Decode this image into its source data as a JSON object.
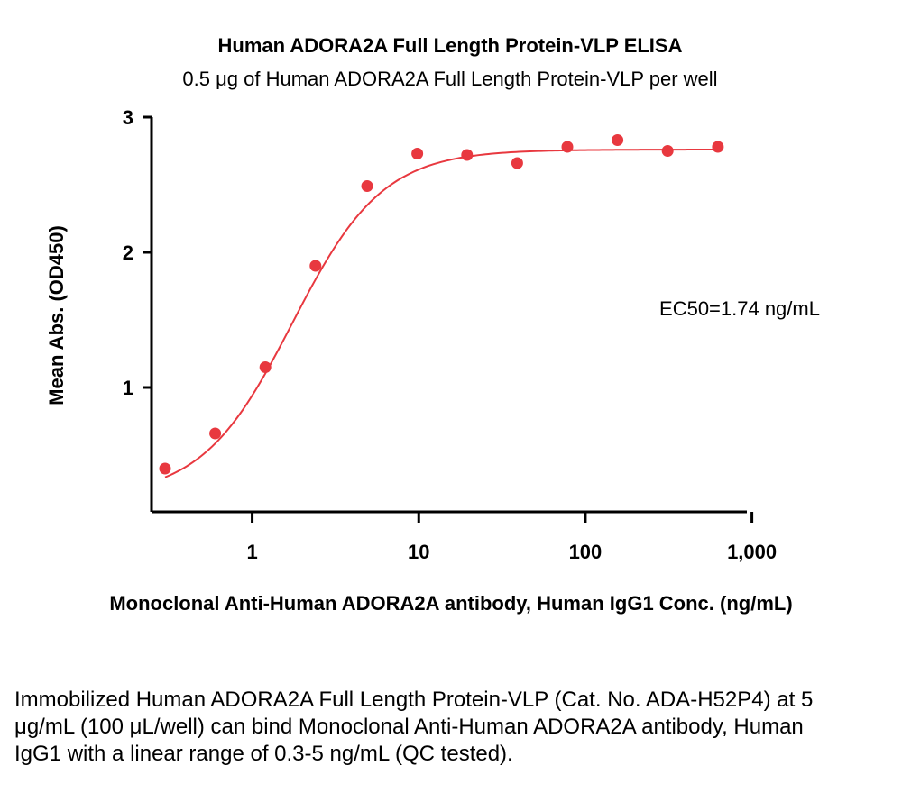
{
  "chart_data": {
    "type": "scatter",
    "title": "Human ADORA2A Full Length Protein-VLP ELISA",
    "subtitle": "0.5 μg of Human ADORA2A Full Length Protein-VLP per well",
    "xlabel": "Monoclonal Anti-Human ADORA2A antibody, Human IgG1 Conc. (ng/mL)",
    "ylabel": "Mean Abs. (OD450)",
    "x_scale": "log",
    "xlim": [
      0.3,
      700
    ],
    "ylim": [
      0.08,
      3
    ],
    "x_ticks": [
      1,
      10,
      100,
      1000
    ],
    "x_tick_labels": [
      "1",
      "10",
      "100",
      "1,000"
    ],
    "y_ticks": [
      1,
      2,
      3
    ],
    "y_tick_labels": [
      "1",
      "2",
      "3"
    ],
    "series": [
      {
        "color": "#e8383f",
        "points": [
          {
            "x": 0.3,
            "y": 0.4
          },
          {
            "x": 0.6,
            "y": 0.66
          },
          {
            "x": 1.2,
            "y": 1.15
          },
          {
            "x": 2.4,
            "y": 1.9
          },
          {
            "x": 4.9,
            "y": 2.49
          },
          {
            "x": 9.8,
            "y": 2.73
          },
          {
            "x": 19.5,
            "y": 2.72
          },
          {
            "x": 39,
            "y": 2.66
          },
          {
            "x": 78,
            "y": 2.78
          },
          {
            "x": 156,
            "y": 2.83
          },
          {
            "x": 312,
            "y": 2.75
          },
          {
            "x": 625,
            "y": 2.78
          }
        ],
        "fit": {
          "model": "4PL",
          "bottom": 0.19,
          "top": 2.76,
          "ec50": 1.74,
          "hill": 1.6
        }
      }
    ],
    "grid": false,
    "legend": "none",
    "annotations": [
      {
        "text": "EC50=1.74 ng/mL"
      }
    ]
  },
  "caption": "Immobilized Human ADORA2A Full Length Protein-VLP (Cat. No. ADA-H52P4) at 5 μg/mL (100 μL/well) can bind Monoclonal Anti-Human ADORA2A antibody, Human IgG1 with a linear range of 0.3-5 ng/mL (QC tested)."
}
